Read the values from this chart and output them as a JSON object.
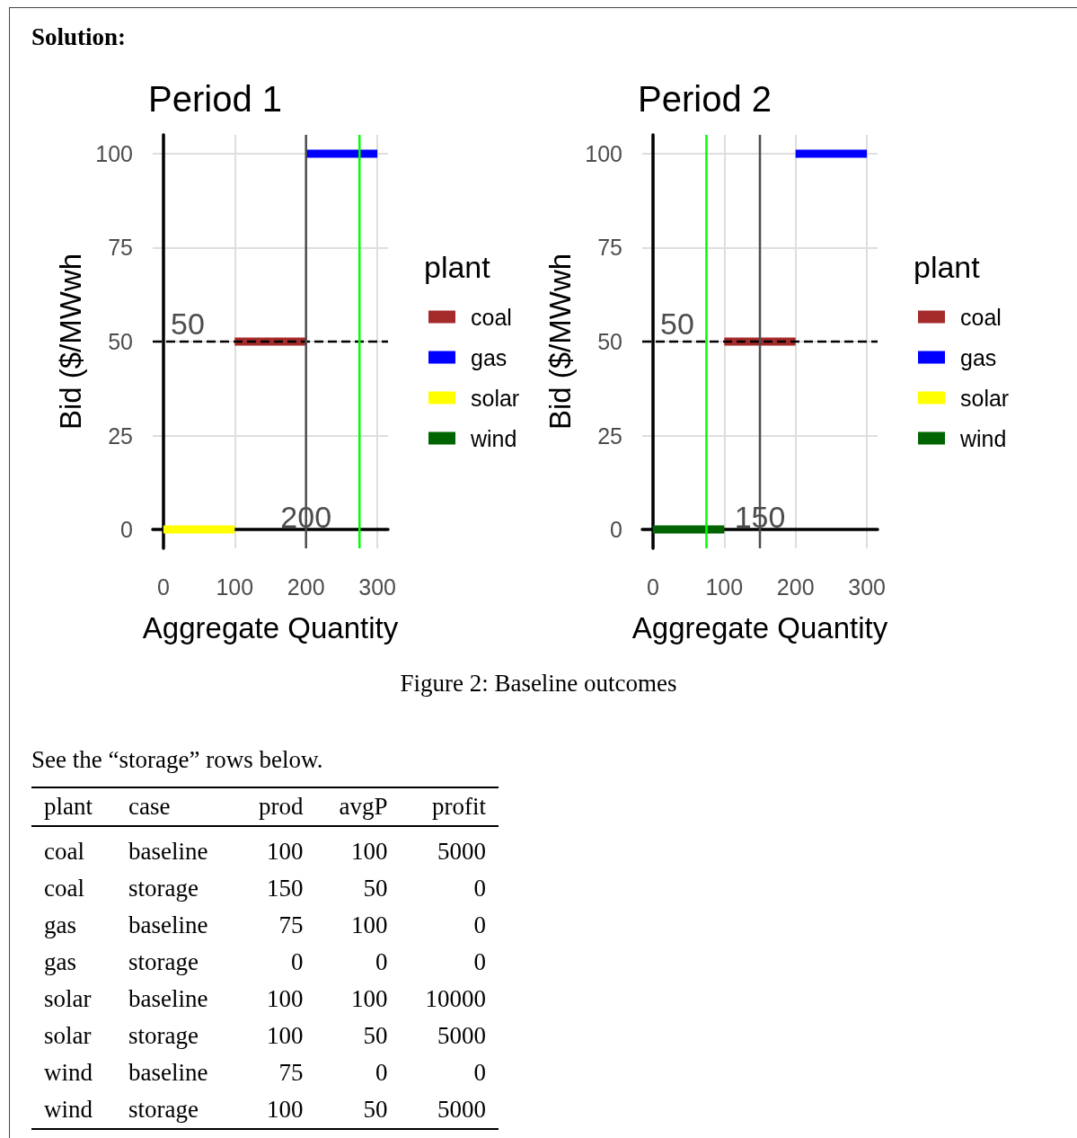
{
  "chart_data": [
    {
      "type": "line",
      "title": "Period 1",
      "xlabel": "Aggregate Quantity",
      "ylabel": "Bid ($/MWwh",
      "legend_title": "plant",
      "legend": "right",
      "grid": true,
      "marker": "none",
      "annotations": [
        "Solution:"
      ],
      "xlim": [
        -15,
        315
      ],
      "xticks": [
        0,
        100,
        200,
        300
      ],
      "ylim": [
        -5,
        105
      ],
      "yticks": [
        0,
        25,
        50,
        75,
        100
      ],
      "series": [
        {
          "name": "coal",
          "color": "#a52a2a",
          "x": [
            100,
            200
          ],
          "values": [
            50,
            50
          ]
        },
        {
          "name": "gas",
          "color": "#0000ff",
          "x": [
            200,
            300
          ],
          "values": [
            100,
            100
          ]
        },
        {
          "name": "solar",
          "color": "#ffff00",
          "x": [
            0,
            100
          ],
          "values": [
            0,
            0
          ]
        },
        {
          "name": "wind",
          "color": "#006400"
        }
      ],
      "ref_lines": [
        {
          "axis": "y",
          "value": 50,
          "label": "50",
          "color": "#000000",
          "line_style": "dashed"
        },
        {
          "axis": "x",
          "value": 200,
          "label": "200",
          "color": "#4d4d4d"
        },
        {
          "axis": "x",
          "value": 275,
          "color": "#00ff00"
        }
      ]
    },
    {
      "type": "line",
      "title": "Period 2",
      "xlabel": "Aggregate Quantity",
      "ylabel": "Bid ($/MWwh",
      "legend_title": "plant",
      "legend": "right",
      "grid": true,
      "marker": "none",
      "annotations": [
        "Figure 2: Baseline outcomes"
      ],
      "xlim": [
        -15,
        315
      ],
      "xticks": [
        0,
        100,
        200,
        300
      ],
      "ylim": [
        -5,
        105
      ],
      "yticks": [
        0,
        25,
        50,
        75,
        100
      ],
      "series": [
        {
          "name": "coal",
          "color": "#a52a2a",
          "x": [
            100,
            200
          ],
          "values": [
            50,
            50
          ]
        },
        {
          "name": "gas",
          "color": "#0000ff",
          "x": [
            200,
            300
          ],
          "values": [
            100,
            100
          ]
        },
        {
          "name": "solar",
          "color": "#ffff00"
        },
        {
          "name": "wind",
          "color": "#006400",
          "x": [
            0,
            100
          ],
          "values": [
            0,
            0
          ]
        }
      ],
      "ref_lines": [
        {
          "axis": "y",
          "value": 50,
          "label": "50",
          "color": "#000000",
          "line_style": "dashed"
        },
        {
          "axis": "x",
          "value": 150,
          "label": "150",
          "color": "#4d4d4d"
        },
        {
          "axis": "x",
          "value": 75,
          "color": "#00ff00"
        }
      ]
    },
    {
      "type": "other",
      "title": "See the “storage” rows below.",
      "categories": [
        "plant",
        "case",
        "prod",
        "avgP",
        "profit"
      ],
      "cell_labels": [
        [
          "coal",
          "baseline",
          "100",
          "100",
          "5000"
        ],
        [
          "coal",
          "storage",
          "150",
          "50",
          "0"
        ],
        [
          "gas",
          "baseline",
          "75",
          "100",
          "0"
        ],
        [
          "gas",
          "storage",
          "0",
          "0",
          "0"
        ],
        [
          "solar",
          "baseline",
          "100",
          "100",
          "10000"
        ],
        [
          "solar",
          "storage",
          "100",
          "50",
          "5000"
        ],
        [
          "wind",
          "baseline",
          "75",
          "0",
          "0"
        ],
        [
          "wind",
          "storage",
          "100",
          "50",
          "5000"
        ]
      ]
    }
  ]
}
